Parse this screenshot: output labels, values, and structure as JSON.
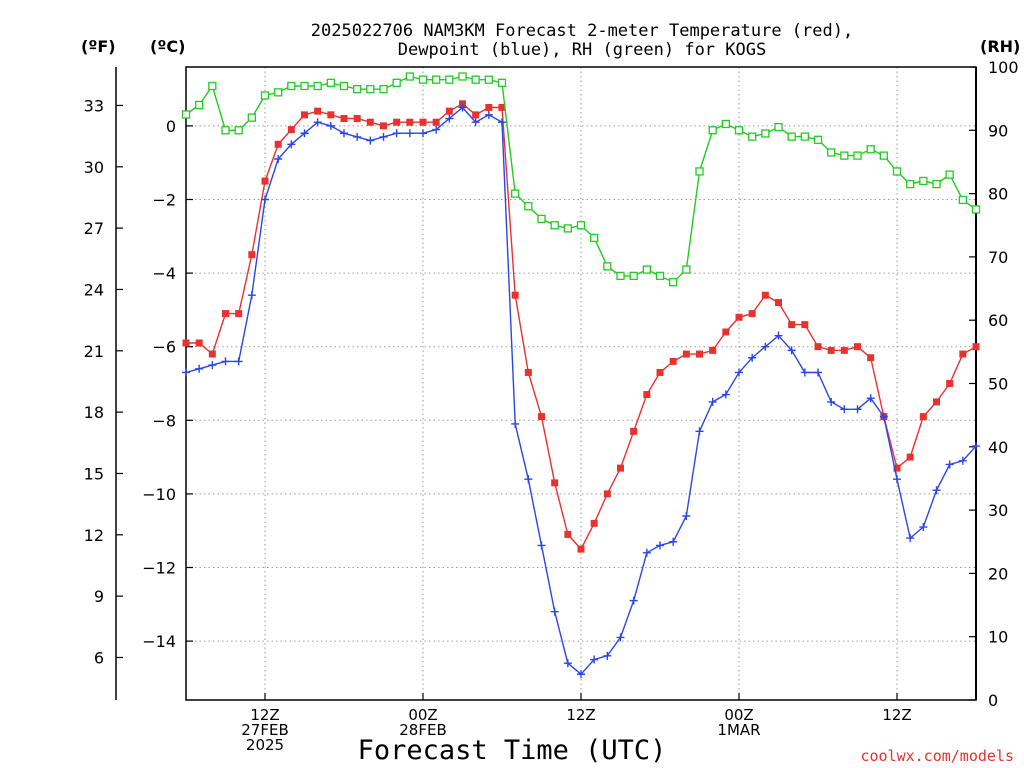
{
  "title": {
    "line1": "2025022706 NAM3KM Forecast 2-meter Temperature (red),",
    "line2": "Dewpoint (blue), RH (green) for KOGS"
  },
  "axis_units": {
    "fahrenheit": "(ºF)",
    "celsius": "(ºC)",
    "rh": "(RH)"
  },
  "xlabel": "Forecast Time (UTC)",
  "credit": "coolwx.com/models",
  "colors": {
    "temperature": "#e8322f",
    "dewpoint": "#2a46e8",
    "rh": "#22cc22",
    "grid": "#9a9a9a"
  },
  "chart_data": {
    "type": "line",
    "title": "2025022706 NAM3KM Forecast 2-meter Temperature (red), Dewpoint (blue), RH (green) for KOGS",
    "xlabel": "Forecast Time (UTC)",
    "x_unit": "forecast hour from 2025-02-27 06Z",
    "xlim": [
      0,
      60
    ],
    "x_ticks": [
      {
        "hour": 6,
        "label": [
          "12Z",
          "27FEB",
          "2025"
        ]
      },
      {
        "hour": 18,
        "label": [
          "00Z",
          "28FEB"
        ]
      },
      {
        "hour": 30,
        "label": [
          "12Z"
        ]
      },
      {
        "hour": 42,
        "label": [
          "00Z",
          "1MAR"
        ]
      },
      {
        "hour": 54,
        "label": [
          "12Z"
        ]
      }
    ],
    "ylim_c": [
      -15.6,
      1.6
    ],
    "y_ticks_c": [
      0,
      -2,
      -4,
      -6,
      -8,
      -10,
      -12,
      -14
    ],
    "y_ticks_f": [
      33,
      30,
      27,
      24,
      21,
      18,
      15,
      12,
      9,
      6
    ],
    "ylim_rh": [
      0,
      100
    ],
    "y_ticks_rh": [
      0,
      10,
      20,
      30,
      40,
      50,
      60,
      70,
      80,
      90,
      100
    ],
    "grid": true,
    "series": [
      {
        "name": "Temperature",
        "axis": "celsius",
        "marker": "filled-square",
        "x": [
          0,
          1,
          2,
          3,
          4,
          5,
          6,
          7,
          8,
          9,
          10,
          11,
          12,
          13,
          14,
          15,
          16,
          17,
          18,
          19,
          20,
          21,
          22,
          23,
          24,
          25,
          26,
          27,
          28,
          29,
          30,
          31,
          32,
          33,
          34,
          35,
          36,
          37,
          38,
          39,
          40,
          41,
          42,
          43,
          44,
          45,
          46,
          47,
          48,
          49,
          50,
          51,
          52,
          53,
          54,
          55,
          56,
          57,
          58,
          59,
          60
        ],
        "values": [
          -5.9,
          -5.9,
          -6.2,
          -5.1,
          -5.1,
          -3.5,
          -1.5,
          -0.5,
          -0.1,
          0.3,
          0.4,
          0.3,
          0.2,
          0.2,
          0.1,
          0.0,
          0.1,
          0.1,
          0.1,
          0.1,
          0.4,
          0.6,
          0.3,
          0.5,
          0.5,
          -4.6,
          -6.7,
          -7.9,
          -9.7,
          -11.1,
          -11.5,
          -10.8,
          -10.0,
          -9.3,
          -8.3,
          -7.3,
          -6.7,
          -6.4,
          -6.2,
          -6.2,
          -6.1,
          -5.6,
          -5.2,
          -5.1,
          -4.6,
          -4.8,
          -5.4,
          -5.4,
          -6.0,
          -6.1,
          -6.1,
          -6.0,
          -6.3,
          -7.9,
          -9.3,
          -9.0,
          -7.9,
          -7.5,
          -7.0,
          -6.2,
          -6.0
        ]
      },
      {
        "name": "Dewpoint",
        "axis": "celsius",
        "marker": "plus",
        "x": [
          0,
          1,
          2,
          3,
          4,
          5,
          6,
          7,
          8,
          9,
          10,
          11,
          12,
          13,
          14,
          15,
          16,
          17,
          18,
          19,
          20,
          21,
          22,
          23,
          24,
          25,
          26,
          27,
          28,
          29,
          30,
          31,
          32,
          33,
          34,
          35,
          36,
          37,
          38,
          39,
          40,
          41,
          42,
          43,
          44,
          45,
          46,
          47,
          48,
          49,
          50,
          51,
          52,
          53,
          54,
          55,
          56,
          57,
          58,
          59,
          60
        ],
        "values": [
          -6.7,
          -6.6,
          -6.5,
          -6.4,
          -6.4,
          -4.6,
          -2.0,
          -0.9,
          -0.5,
          -0.2,
          0.1,
          0.0,
          -0.2,
          -0.3,
          -0.4,
          -0.3,
          -0.2,
          -0.2,
          -0.2,
          -0.1,
          0.2,
          0.5,
          0.1,
          0.3,
          0.1,
          -8.1,
          -9.6,
          -11.4,
          -13.2,
          -14.6,
          -14.9,
          -14.5,
          -14.4,
          -13.9,
          -12.9,
          -11.6,
          -11.4,
          -11.3,
          -10.6,
          -8.3,
          -7.5,
          -7.3,
          -6.7,
          -6.3,
          -6.0,
          -5.7,
          -6.1,
          -6.7,
          -6.7,
          -7.5,
          -7.7,
          -7.7,
          -7.4,
          -7.9,
          -9.6,
          -11.2,
          -10.9,
          -9.9,
          -9.2,
          -9.1,
          -8.7
        ]
      },
      {
        "name": "RH",
        "axis": "rh",
        "marker": "open-square",
        "x": [
          0,
          1,
          2,
          3,
          4,
          5,
          6,
          7,
          8,
          9,
          10,
          11,
          12,
          13,
          14,
          15,
          16,
          17,
          18,
          19,
          20,
          21,
          22,
          23,
          24,
          25,
          26,
          27,
          28,
          29,
          30,
          31,
          32,
          33,
          34,
          35,
          36,
          37,
          38,
          39,
          40,
          41,
          42,
          43,
          44,
          45,
          46,
          47,
          48,
          49,
          50,
          51,
          52,
          53,
          54,
          55,
          56,
          57,
          58,
          59,
          60
        ],
        "values": [
          92.5,
          94,
          97,
          90,
          90,
          92,
          95.5,
          96,
          97,
          97,
          97,
          97.5,
          97,
          96.5,
          96.5,
          96.5,
          97.5,
          98.5,
          98,
          98,
          98,
          98.5,
          98,
          98,
          97.5,
          80,
          78,
          76,
          75,
          74.5,
          75,
          73,
          68.5,
          67,
          67,
          68,
          67,
          66,
          68,
          83.5,
          90,
          91,
          90,
          89,
          89.5,
          90.5,
          89,
          89,
          88.5,
          86.5,
          86,
          86,
          87,
          86,
          83.5,
          81.5,
          82,
          81.5,
          83,
          79,
          77.5
        ]
      }
    ]
  }
}
